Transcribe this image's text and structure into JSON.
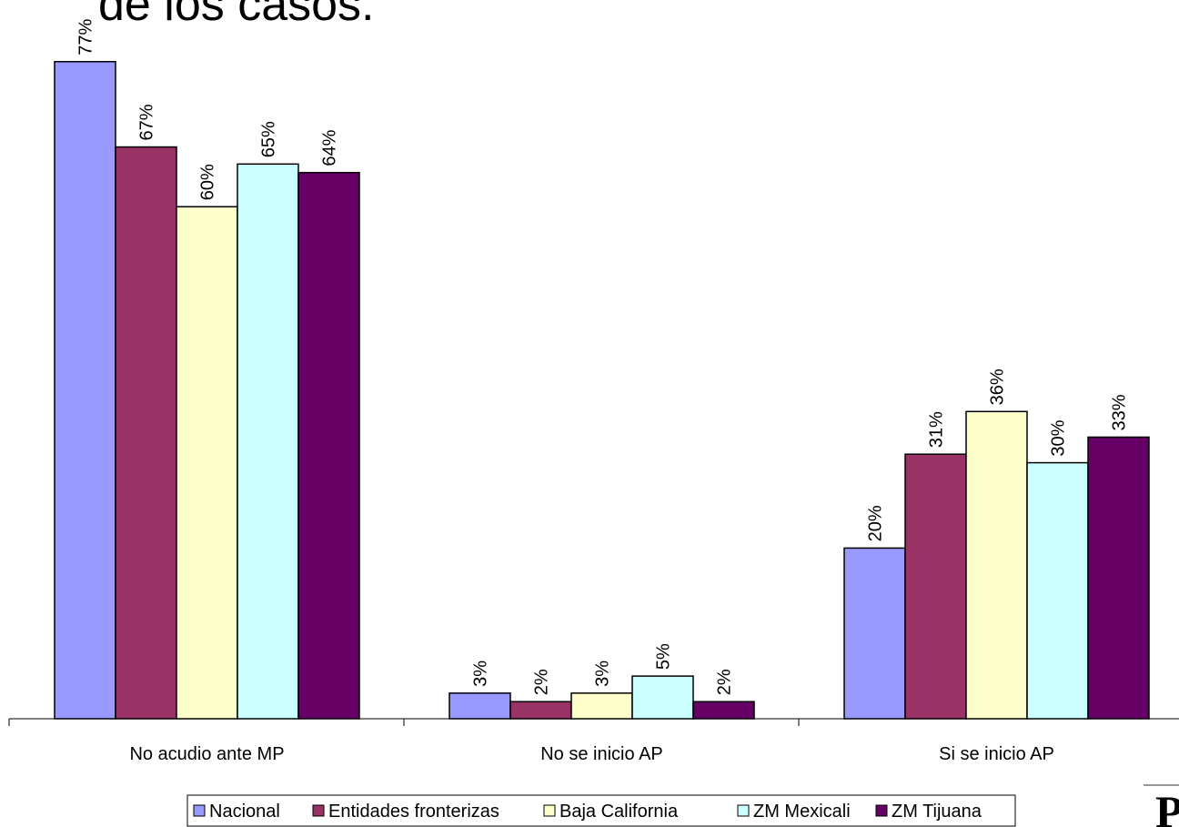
{
  "title_fragment": "de los casos.",
  "corner_glyph": "P",
  "chart_data": {
    "type": "bar",
    "categories": [
      "No acudio ante MP",
      "No se inicio AP",
      "Si se inicio AP"
    ],
    "series": [
      {
        "name": "Nacional",
        "color": "#9999ff",
        "values": [
          77,
          3,
          20
        ],
        "labels": [
          "77%",
          "3%",
          "20%"
        ]
      },
      {
        "name": "Entidades fronterizas",
        "color": "#993366",
        "values": [
          67,
          2,
          31
        ],
        "labels": [
          "67%",
          "2%",
          "31%"
        ]
      },
      {
        "name": "Baja California",
        "color": "#ffffcc",
        "values": [
          60,
          3,
          36
        ],
        "labels": [
          "60%",
          "3%",
          "36%"
        ]
      },
      {
        "name": "ZM Mexicali",
        "color": "#ccffff",
        "values": [
          65,
          5,
          30
        ],
        "labels": [
          "65%",
          "5%",
          "30%"
        ]
      },
      {
        "name": "ZM Tijuana",
        "color": "#660066",
        "values": [
          64,
          2,
          33
        ],
        "labels": [
          "64%",
          "2%",
          "33%"
        ]
      }
    ],
    "ylim": [
      0,
      79
    ],
    "legend_position": "bottom",
    "grid": false,
    "data_labels_rotated": true
  }
}
